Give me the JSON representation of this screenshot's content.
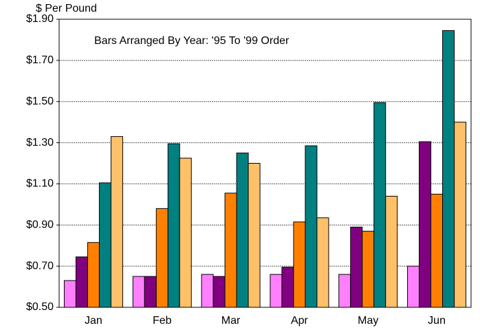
{
  "chart_data": {
    "type": "bar",
    "y_label": "$ Per Pound",
    "annotation": "Bars Arranged By Year:  '95 To '99 Order",
    "categories": [
      "Jan",
      "Feb",
      "Mar",
      "Apr",
      "May",
      "Jun"
    ],
    "series": [
      {
        "color": "#ff80ff",
        "values": [
          0.63,
          0.65,
          0.66,
          0.66,
          0.66,
          0.7
        ]
      },
      {
        "color": "#800080",
        "values": [
          0.745,
          0.65,
          0.65,
          0.695,
          0.89,
          1.305
        ]
      },
      {
        "color": "#ff8000",
        "values": [
          0.815,
          0.98,
          1.055,
          0.915,
          0.87,
          1.05
        ]
      },
      {
        "color": "#008080",
        "values": [
          1.105,
          1.295,
          1.25,
          1.285,
          1.495,
          1.845
        ]
      },
      {
        "color": "#ffc06a",
        "values": [
          1.33,
          1.225,
          1.2,
          0.935,
          1.04,
          1.4
        ]
      }
    ],
    "ylim": [
      0.5,
      1.9
    ],
    "yticks": [
      {
        "value": 0.5,
        "label": "$0.50"
      },
      {
        "value": 0.7,
        "label": "$0.70"
      },
      {
        "value": 0.9,
        "label": "$0.90"
      },
      {
        "value": 1.1,
        "label": "$1.10"
      },
      {
        "value": 1.3,
        "label": "$1.30"
      },
      {
        "value": 1.5,
        "label": "$1.50"
      },
      {
        "value": 1.7,
        "label": "$1.70"
      },
      {
        "value": 1.9,
        "label": "$1.90"
      }
    ],
    "grid": true
  }
}
